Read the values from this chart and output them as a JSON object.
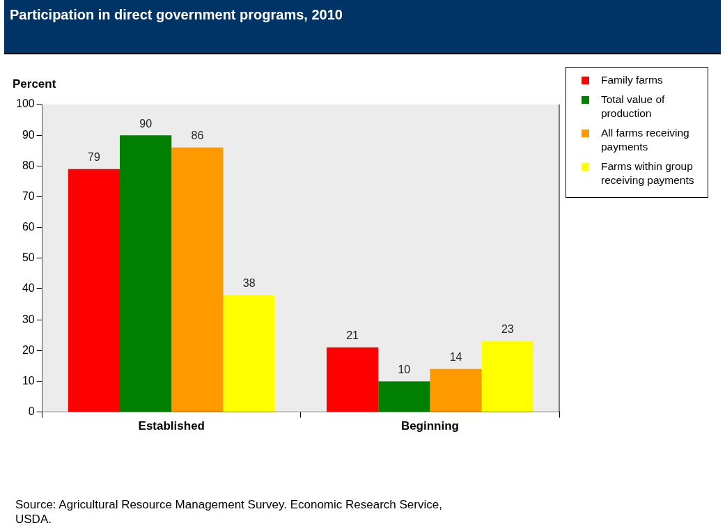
{
  "chart_data": {
    "type": "bar",
    "title": "Participation in direct government programs, 2010",
    "ylabel": "Percent",
    "categories": [
      "Established",
      "Beginning"
    ],
    "series": [
      {
        "name": "Family farms",
        "color": "#ff0000",
        "values": [
          79,
          21
        ]
      },
      {
        "name": "Total value of production",
        "color": "#008000",
        "values": [
          90,
          10
        ]
      },
      {
        "name": "All farms receiving payments",
        "color": "#ff9900",
        "values": [
          86,
          14
        ]
      },
      {
        "name": "Farms within group receiving payments",
        "color": "#ffff00",
        "values": [
          38,
          23
        ]
      }
    ],
    "ylim": [
      0,
      100
    ],
    "yticks": [
      0,
      10,
      20,
      30,
      40,
      50,
      60,
      70,
      80,
      90,
      100
    ],
    "legend": "top right",
    "data_labels": true,
    "annotations": [
      "Source: Agricultural Resource Management Survey. Economic Research Service, USDA."
    ]
  }
}
